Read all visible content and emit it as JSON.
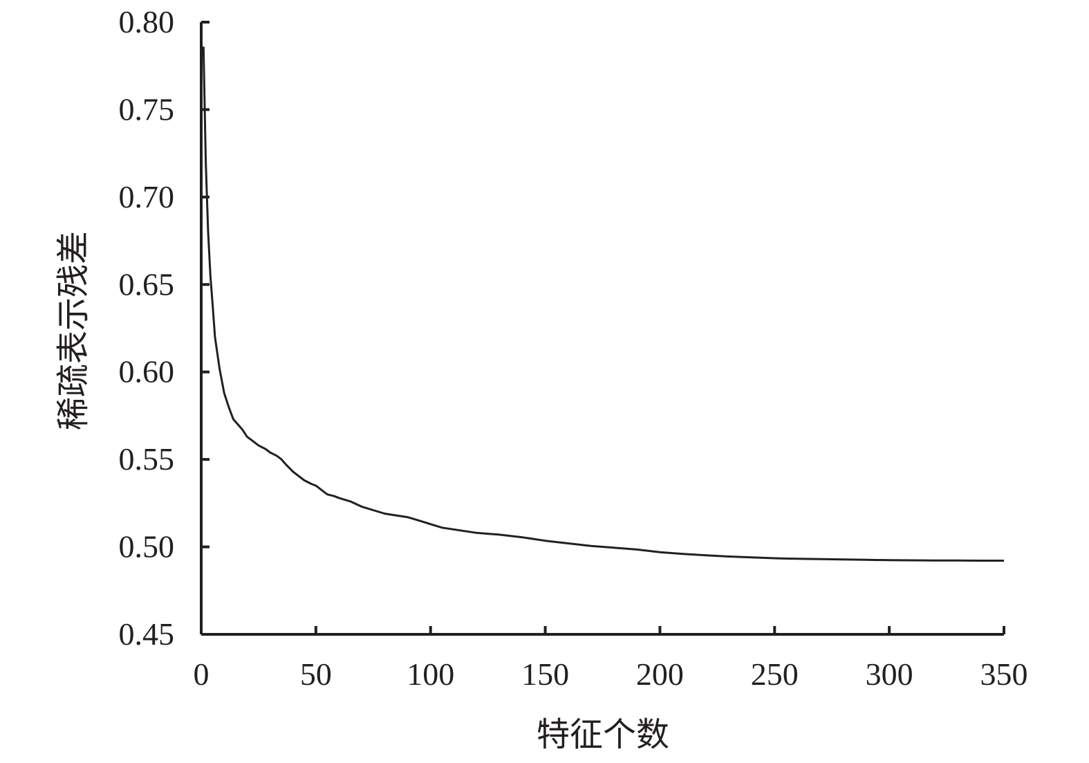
{
  "chart_data": {
    "type": "line",
    "title": "",
    "xlabel": "特征个数",
    "ylabel": "稀疏表示残差",
    "xlim": [
      0,
      350
    ],
    "ylim": [
      0.45,
      0.8
    ],
    "x_ticks": [
      "0",
      "50",
      "100",
      "150",
      "200",
      "250",
      "300",
      "350"
    ],
    "y_ticks": [
      "0.45",
      "0.50",
      "0.55",
      "0.60",
      "0.65",
      "0.70",
      "0.75",
      "0.80"
    ],
    "grid": false,
    "legend": "none",
    "line_color": "#231f20",
    "series": [
      {
        "x": [
          1,
          2,
          3,
          4,
          5,
          6,
          8,
          10,
          12,
          14,
          16,
          18,
          20,
          22,
          25,
          28,
          30,
          33,
          35,
          37,
          40,
          42,
          45,
          48,
          50,
          53,
          55,
          58,
          60,
          65,
          70,
          75,
          80,
          85,
          90,
          95,
          100,
          105,
          110,
          115,
          120,
          125,
          130,
          140,
          150,
          160,
          170,
          180,
          190,
          200,
          210,
          220,
          230,
          240,
          250,
          260,
          270,
          280,
          290,
          300,
          310,
          320,
          330,
          340,
          350
        ],
        "y": [
          0.786,
          0.72,
          0.68,
          0.655,
          0.638,
          0.62,
          0.602,
          0.588,
          0.58,
          0.573,
          0.57,
          0.567,
          0.563,
          0.561,
          0.558,
          0.556,
          0.554,
          0.552,
          0.55,
          0.547,
          0.543,
          0.541,
          0.538,
          0.536,
          0.535,
          0.532,
          0.53,
          0.529,
          0.528,
          0.526,
          0.523,
          0.521,
          0.519,
          0.518,
          0.517,
          0.515,
          0.513,
          0.511,
          0.51,
          0.509,
          0.508,
          0.5075,
          0.507,
          0.5055,
          0.5035,
          0.502,
          0.5005,
          0.4995,
          0.4985,
          0.497,
          0.496,
          0.4952,
          0.4945,
          0.494,
          0.4935,
          0.4932,
          0.493,
          0.4928,
          0.4926,
          0.4924,
          0.4923,
          0.4922,
          0.4922,
          0.4921,
          0.4921
        ]
      }
    ]
  }
}
